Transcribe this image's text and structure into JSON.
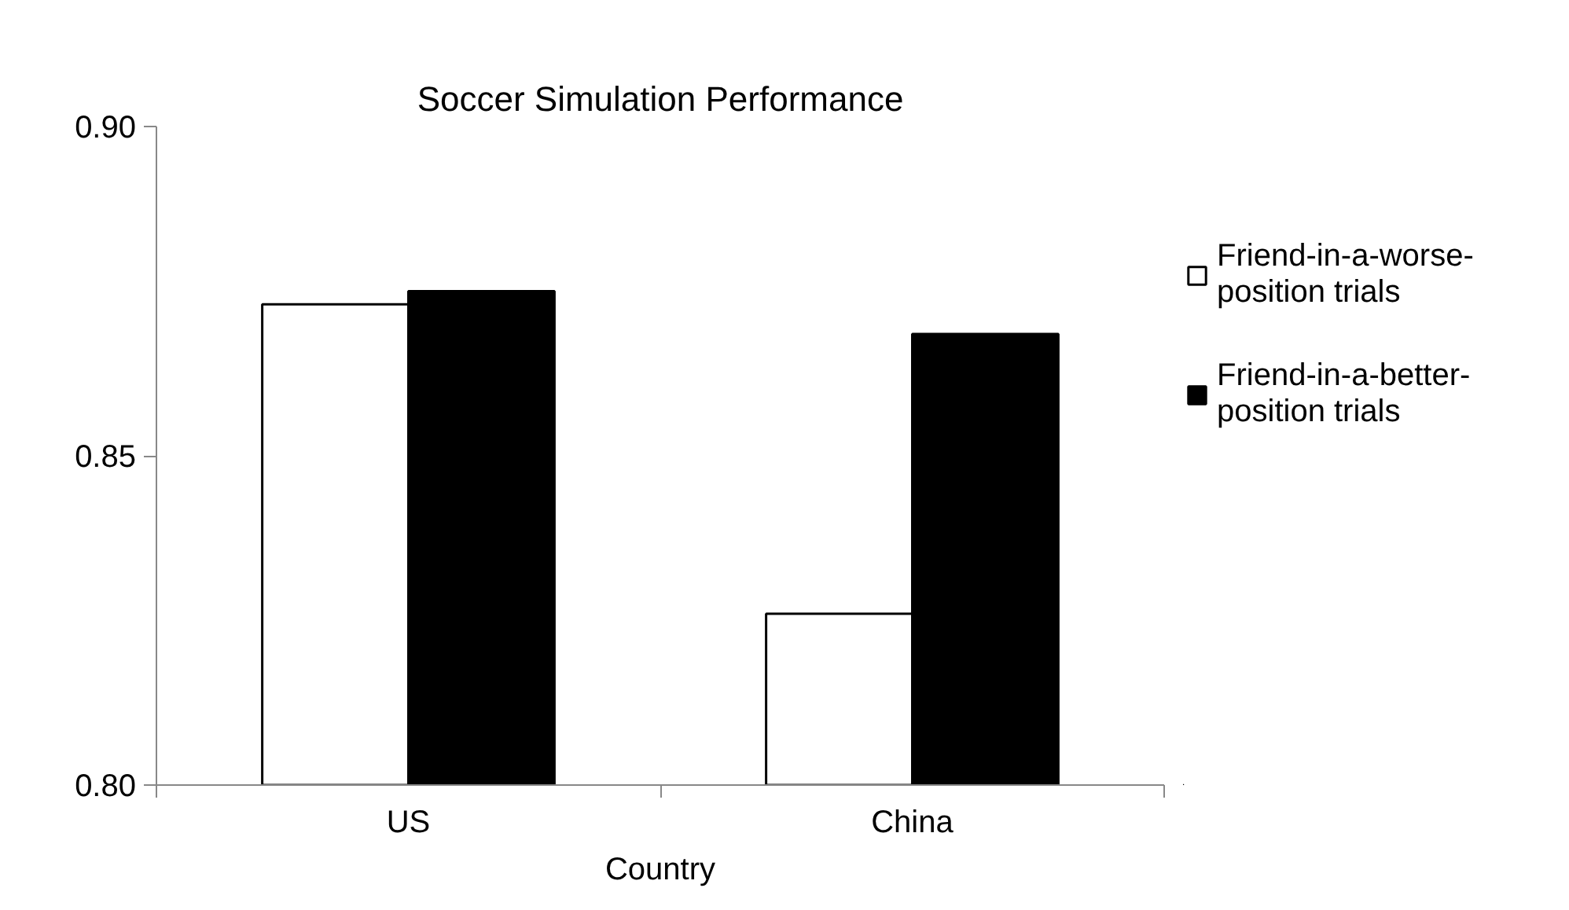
{
  "chart_data": {
    "type": "bar",
    "title": "Soccer Simulation Performance",
    "xlabel": "Country",
    "categories": [
      "US",
      "China"
    ],
    "series": [
      {
        "name": "Friend-in-a-worse-position trials",
        "color": "#ffffff",
        "values": [
          0.873,
          0.826
        ]
      },
      {
        "name": "Friend-in-a-better-position trials",
        "color": "#000000",
        "values": [
          0.875,
          0.8685
        ]
      }
    ],
    "ylim": [
      0.8,
      0.9
    ],
    "yticks": [
      {
        "value": 0.8,
        "label": "0.80"
      },
      {
        "value": 0.85,
        "label": "0.85"
      },
      {
        "value": 0.9,
        "label": "0.90"
      }
    ],
    "grid": false,
    "legend": "right"
  }
}
